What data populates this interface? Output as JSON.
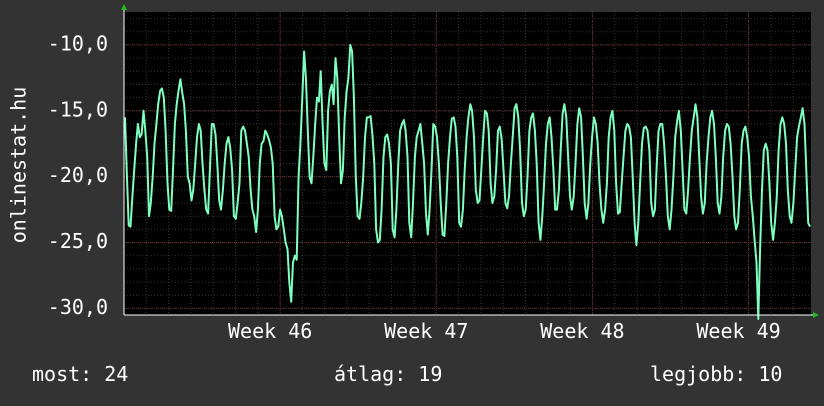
{
  "chart_data": {
    "type": "line",
    "ylabel": "onlinestat.hu",
    "ylim": [
      -30.5,
      -7.5
    ],
    "xlim": [
      0,
      4.4
    ],
    "y_ticks": [
      -10.0,
      -15.0,
      -20.0,
      -25.0,
      -30.0
    ],
    "y_tick_labels": [
      "-10,0",
      "-15,0",
      "-20,0",
      "-25,0",
      "-30,0"
    ],
    "x_ticks": [
      {
        "pos": 1,
        "label": "Week 46"
      },
      {
        "pos": 2,
        "label": "Week 47"
      },
      {
        "pos": 3,
        "label": "Week 48"
      },
      {
        "pos": 4,
        "label": "Week 49"
      }
    ],
    "grid": true,
    "series": [
      {
        "name": "",
        "color": "#7fffbf",
        "values": [
          -15.5,
          -19.7,
          -23.7,
          -23.8,
          -21.5,
          -19.5,
          -17.5,
          -16.0,
          -17.0,
          -16.8,
          -15.0,
          -16.5,
          -18.5,
          -23.0,
          -22.0,
          -20.0,
          -17.5,
          -16.0,
          -14.5,
          -13.5,
          -13.3,
          -14.0,
          -16.5,
          -20.5,
          -22.5,
          -22.6,
          -19.5,
          -16.0,
          -14.5,
          -13.5,
          -12.6,
          -13.6,
          -14.5,
          -16.5,
          -20.0,
          -20.5,
          -21.8,
          -21.0,
          -19.0,
          -17.0,
          -16.0,
          -16.5,
          -19.0,
          -21.0,
          -22.5,
          -22.8,
          -19.5,
          -16.0,
          -16.0,
          -16.8,
          -19.0,
          -21.8,
          -22.5,
          -21.0,
          -19.0,
          -17.5,
          -17.0,
          -17.8,
          -19.5,
          -23.0,
          -23.2,
          -22.0,
          -20.5,
          -16.5,
          -16.2,
          -16.5,
          -17.5,
          -18.5,
          -21.0,
          -22.5,
          -23.0,
          -24.2,
          -22.5,
          -19.0,
          -17.5,
          -17.3,
          -16.5,
          -16.8,
          -17.2,
          -17.8,
          -19.0,
          -23.0,
          -24.0,
          -23.8,
          -22.5,
          -23.0,
          -24.0,
          -25.0,
          -25.5,
          -28.0,
          -29.5,
          -26.5,
          -26.0,
          -26.3,
          -20.0,
          -17.5,
          -14.0,
          -10.5,
          -12.5,
          -16.5,
          -20.0,
          -20.5,
          -18.5,
          -16.0,
          -14.0,
          -14.3,
          -12.0,
          -16.0,
          -19.0,
          -19.5,
          -15.0,
          -13.5,
          -13.0,
          -14.5,
          -11.0,
          -12.5,
          -17.0,
          -20.5,
          -19.5,
          -15.5,
          -13.5,
          -12.5,
          -10.0,
          -10.5,
          -14.0,
          -20.0,
          -23.0,
          -23.2,
          -22.0,
          -20.0,
          -17.0,
          -15.5,
          -15.5,
          -15.4,
          -16.8,
          -19.0,
          -24.0,
          -25.0,
          -24.8,
          -22.5,
          -18.5,
          -17.0,
          -16.8,
          -17.5,
          -19.0,
          -24.0,
          -24.6,
          -22.5,
          -19.0,
          -16.5,
          -16.0,
          -15.7,
          -16.5,
          -18.5,
          -23.5,
          -24.6,
          -22.0,
          -18.5,
          -17.0,
          -16.5,
          -16.0,
          -17.5,
          -19.0,
          -22.8,
          -24.4,
          -22.5,
          -19.5,
          -16.0,
          -16.2,
          -17.0,
          -19.0,
          -22.0,
          -24.4,
          -24.5,
          -22.0,
          -19.0,
          -17.0,
          -15.6,
          -15.5,
          -16.2,
          -18.5,
          -23.5,
          -23.8,
          -22.5,
          -19.5,
          -17.0,
          -15.5,
          -14.5,
          -15.0,
          -17.0,
          -21.0,
          -22.0,
          -21.8,
          -19.5,
          -17.0,
          -15.0,
          -15.2,
          -16.5,
          -20.5,
          -22.0,
          -21.5,
          -19.5,
          -16.5,
          -16.2,
          -17.2,
          -19.5,
          -22.0,
          -22.4,
          -21.5,
          -19.0,
          -17.0,
          -14.8,
          -14.5,
          -15.5,
          -18.0,
          -22.0,
          -23.0,
          -22.5,
          -20.0,
          -16.5,
          -15.5,
          -15.2,
          -16.5,
          -19.0,
          -23.5,
          -24.8,
          -23.0,
          -20.5,
          -17.5,
          -16.0,
          -15.5,
          -17.0,
          -19.5,
          -22.5,
          -22.5,
          -21.0,
          -18.0,
          -15.2,
          -14.5,
          -15.5,
          -18.5,
          -21.5,
          -22.5,
          -21.5,
          -19.0,
          -16.0,
          -14.8,
          -15.5,
          -18.5,
          -22.0,
          -23.2,
          -22.0,
          -19.0,
          -17.0,
          -15.5,
          -16.0,
          -17.5,
          -20.5,
          -22.5,
          -23.5,
          -22.5,
          -20.5,
          -17.0,
          -15.5,
          -15.0,
          -16.5,
          -20.5,
          -22.8,
          -22.7,
          -20.5,
          -18.5,
          -16.5,
          -16.0,
          -16.2,
          -17.0,
          -20.0,
          -23.5,
          -25.2,
          -23.5,
          -20.5,
          -17.5,
          -16.3,
          -16.2,
          -16.5,
          -18.0,
          -22.0,
          -23.0,
          -22.5,
          -19.0,
          -16.5,
          -16.0,
          -16.0,
          -17.5,
          -20.0,
          -23.0,
          -24.0,
          -22.5,
          -20.0,
          -17.0,
          -15.8,
          -15.0,
          -16.5,
          -19.5,
          -22.5,
          -22.8,
          -21.0,
          -18.5,
          -16.5,
          -15.5,
          -14.5,
          -15.5,
          -18.5,
          -21.5,
          -22.8,
          -22.0,
          -19.0,
          -17.0,
          -15.5,
          -15.0,
          -16.0,
          -18.5,
          -22.0,
          -22.8,
          -21.5,
          -18.5,
          -16.5,
          -16.0,
          -16.2,
          -17.5,
          -20.0,
          -23.0,
          -24.0,
          -23.5,
          -21.0,
          -17.5,
          -16.5,
          -16.2,
          -17.0,
          -18.5,
          -21.5,
          -23.0,
          -24.8,
          -26.5,
          -30.8,
          -25.5,
          -21.0,
          -18.0,
          -17.5,
          -18.0,
          -20.5,
          -23.5,
          -24.8,
          -23.5,
          -21.5,
          -18.0,
          -16.0,
          -15.5,
          -16.0,
          -17.5,
          -21.0,
          -23.0,
          -23.5,
          -22.0,
          -19.5,
          -17.0,
          -16.2,
          -15.5,
          -14.8,
          -16.0,
          -19.5,
          -23.5,
          -23.8
        ]
      }
    ]
  },
  "stats": {
    "now": "most: 24",
    "avg": "átlag: 19",
    "best": "legjobb: 10"
  },
  "colors": {
    "background": "#333333",
    "plot_bg": "#000000",
    "grid_minor": "#353535",
    "grid_major": "#6e2f2f",
    "line": "#7fffbf",
    "axis_arrow": "#22bb22",
    "text": "#ffffff"
  }
}
